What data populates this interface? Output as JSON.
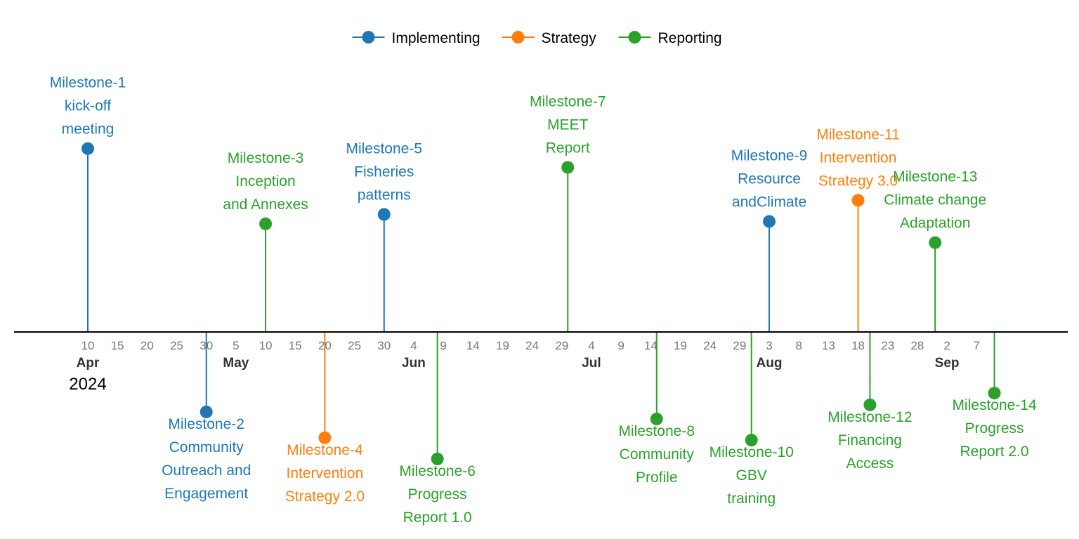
{
  "chart_data": {
    "type": "timeline",
    "legend": {
      "position": "top",
      "entries": [
        {
          "name": "Implementing",
          "color": "#1f77b4"
        },
        {
          "name": "Strategy",
          "color": "#ff7f0e"
        },
        {
          "name": "Reporting",
          "color": "#2ca02c"
        }
      ]
    },
    "x_axis": {
      "year_label": "2024",
      "months": [
        {
          "label": "Apr",
          "date": "2024-04-10"
        },
        {
          "label": "May",
          "date": "2024-05-05"
        },
        {
          "label": "Jun",
          "date": "2024-06-04"
        },
        {
          "label": "Jul",
          "date": "2024-07-04"
        },
        {
          "label": "Aug",
          "date": "2024-08-03"
        },
        {
          "label": "Sep",
          "date": "2024-09-02"
        }
      ],
      "ticks": [
        {
          "label": "10",
          "date": "2024-04-10"
        },
        {
          "label": "15",
          "date": "2024-04-15"
        },
        {
          "label": "20",
          "date": "2024-04-20"
        },
        {
          "label": "25",
          "date": "2024-04-25"
        },
        {
          "label": "30",
          "date": "2024-04-30"
        },
        {
          "label": "5",
          "date": "2024-05-05"
        },
        {
          "label": "10",
          "date": "2024-05-10"
        },
        {
          "label": "15",
          "date": "2024-05-15"
        },
        {
          "label": "20",
          "date": "2024-05-20"
        },
        {
          "label": "25",
          "date": "2024-05-25"
        },
        {
          "label": "30",
          "date": "2024-05-30"
        },
        {
          "label": "4",
          "date": "2024-06-04"
        },
        {
          "label": "9",
          "date": "2024-06-09"
        },
        {
          "label": "14",
          "date": "2024-06-14"
        },
        {
          "label": "19",
          "date": "2024-06-19"
        },
        {
          "label": "24",
          "date": "2024-06-24"
        },
        {
          "label": "29",
          "date": "2024-06-29"
        },
        {
          "label": "4",
          "date": "2024-07-04"
        },
        {
          "label": "9",
          "date": "2024-07-09"
        },
        {
          "label": "14",
          "date": "2024-07-14"
        },
        {
          "label": "19",
          "date": "2024-07-19"
        },
        {
          "label": "24",
          "date": "2024-07-24"
        },
        {
          "label": "29",
          "date": "2024-07-29"
        },
        {
          "label": "3",
          "date": "2024-08-03"
        },
        {
          "label": "8",
          "date": "2024-08-08"
        },
        {
          "label": "13",
          "date": "2024-08-13"
        },
        {
          "label": "18",
          "date": "2024-08-18"
        },
        {
          "label": "23",
          "date": "2024-08-23"
        },
        {
          "label": "28",
          "date": "2024-08-28"
        },
        {
          "label": "2",
          "date": "2024-09-02"
        },
        {
          "label": "7",
          "date": "2024-09-07"
        }
      ]
    },
    "milestones": [
      {
        "label": [
          "Milestone-1",
          "kick-off",
          "meeting"
        ],
        "date": "2024-04-10",
        "category": "Implementing",
        "level": 0.78
      },
      {
        "label": [
          "Milestone-2",
          "Community",
          "Outreach and",
          "Engagement"
        ],
        "date": "2024-04-30",
        "category": "Implementing",
        "level": -0.34
      },
      {
        "label": [
          "Milestone-3",
          "Inception",
          "and Annexes"
        ],
        "date": "2024-05-10",
        "category": "Reporting",
        "level": 0.46
      },
      {
        "label": [
          "Milestone-4",
          "Intervention",
          "Strategy 2.0"
        ],
        "date": "2024-05-20",
        "category": "Strategy",
        "level": -0.45
      },
      {
        "label": [
          "Milestone-5",
          "Fisheries",
          "patterns"
        ],
        "date": "2024-05-30",
        "category": "Implementing",
        "level": 0.5
      },
      {
        "label": [
          "Milestone-6",
          "Progress",
          "Report 1.0"
        ],
        "date": "2024-06-08",
        "category": "Reporting",
        "level": -0.54
      },
      {
        "label": [
          "Milestone-7",
          "MEET",
          "Report"
        ],
        "date": "2024-06-30",
        "category": "Reporting",
        "level": 0.7
      },
      {
        "label": [
          "Milestone-8",
          "Community",
          "Profile"
        ],
        "date": "2024-07-15",
        "category": "Reporting",
        "level": -0.37
      },
      {
        "label": [
          "Milestone-9",
          "Resource",
          "andClimate"
        ],
        "date": "2024-08-03",
        "category": "Implementing",
        "level": 0.47
      },
      {
        "label": [
          "Milestone-10",
          "GBV",
          "training"
        ],
        "date": "2024-07-31",
        "category": "Reporting",
        "level": -0.46
      },
      {
        "label": [
          "Milestone-11",
          "Intervention",
          "Strategy 3.0"
        ],
        "date": "2024-08-18",
        "category": "Strategy",
        "level": 0.56
      },
      {
        "label": [
          "Milestone-12",
          "Financing",
          "Access"
        ],
        "date": "2024-08-20",
        "category": "Reporting",
        "level": -0.31
      },
      {
        "label": [
          "Milestone-13",
          "Climate change",
          "Adaptation"
        ],
        "date": "2024-08-31",
        "category": "Reporting",
        "level": 0.38
      },
      {
        "label": [
          "Milestone-14",
          "Progress",
          "Report 2.0"
        ],
        "date": "2024-09-10",
        "category": "Reporting",
        "level": -0.26
      }
    ]
  }
}
